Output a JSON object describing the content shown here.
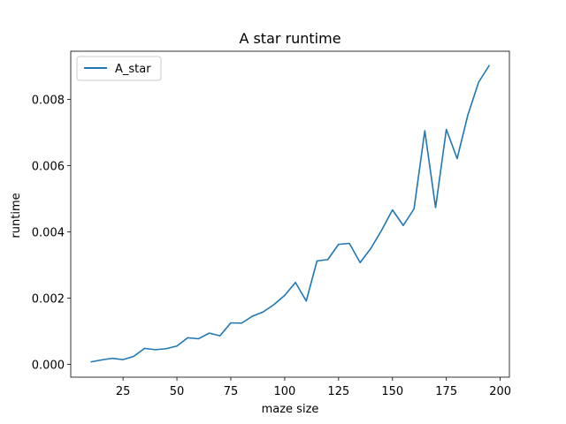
{
  "chart_data": {
    "type": "line",
    "title": "A star runtime",
    "xlabel": "maze size",
    "ylabel": "runtime",
    "xlim": [
      0.75,
      204.25
    ],
    "ylim": [
      -0.00039,
      0.00945
    ],
    "xticks": [
      25,
      50,
      75,
      100,
      125,
      150,
      175,
      200
    ],
    "yticks": [
      0.0,
      0.002,
      0.004,
      0.006,
      0.008
    ],
    "ytick_labels": [
      "0.000",
      "0.002",
      "0.004",
      "0.006",
      "0.008"
    ],
    "grid": false,
    "legend_position": "top-left",
    "series": [
      {
        "name": "A_star",
        "color": "#1f77b4",
        "x": [
          10,
          15,
          20,
          25,
          30,
          35,
          40,
          45,
          50,
          55,
          60,
          65,
          70,
          75,
          80,
          85,
          90,
          95,
          100,
          105,
          110,
          115,
          120,
          125,
          130,
          135,
          140,
          145,
          150,
          155,
          160,
          165,
          170,
          175,
          180,
          185,
          190,
          195
        ],
        "y": [
          7e-05,
          0.00013,
          0.00018,
          0.00014,
          0.00024,
          0.00048,
          0.00044,
          0.00047,
          0.00055,
          0.0008,
          0.00077,
          0.00094,
          0.00086,
          0.00125,
          0.00124,
          0.00145,
          0.00158,
          0.0018,
          0.00208,
          0.00247,
          0.00191,
          0.00312,
          0.00316,
          0.00362,
          0.00365,
          0.00307,
          0.0035,
          0.00405,
          0.00466,
          0.00419,
          0.00469,
          0.00705,
          0.00473,
          0.00709,
          0.00621,
          0.00753,
          0.00852,
          0.00903
        ]
      }
    ]
  }
}
